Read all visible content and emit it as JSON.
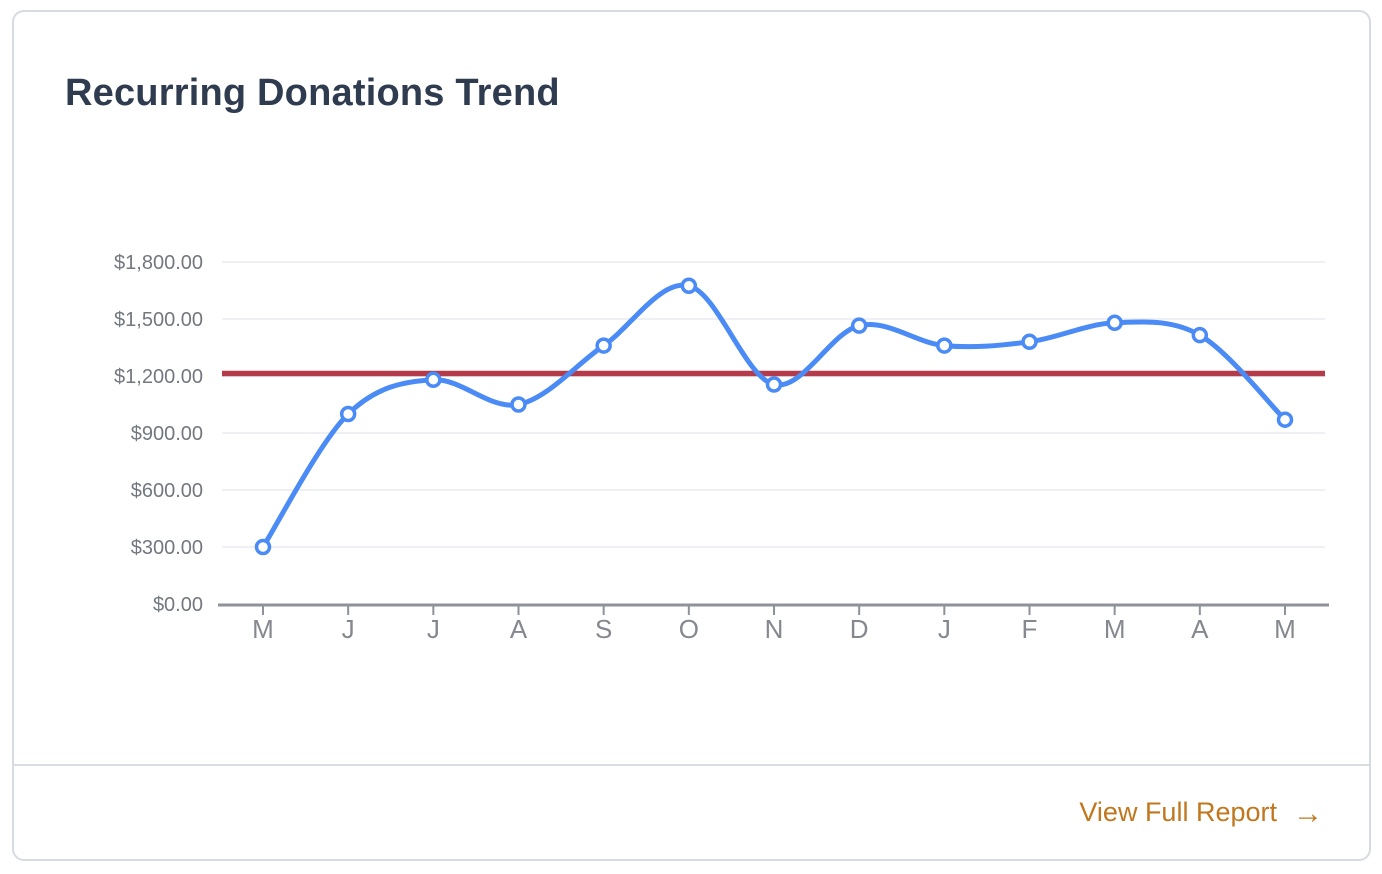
{
  "card": {
    "title": "Recurring Donations Trend",
    "footer": {
      "link_label": "View Full Report",
      "arrow_icon": "→"
    }
  },
  "chart_data": {
    "type": "line",
    "title": "Recurring Donations Trend",
    "categories": [
      "M",
      "J",
      "J",
      "A",
      "S",
      "O",
      "N",
      "D",
      "J",
      "F",
      "M",
      "A",
      "M"
    ],
    "series": [
      {
        "name": "Recurring Donations",
        "values": [
          300,
          1000,
          1180,
          1050,
          1360,
          1675,
          1155,
          1465,
          1360,
          1380,
          1480,
          1415,
          970
        ]
      }
    ],
    "threshold_line": {
      "value": 1213,
      "color": "#b43b4a"
    },
    "ylim": [
      0,
      1800
    ],
    "yticks": [
      0,
      300,
      600,
      900,
      1200,
      1500,
      1800
    ],
    "ytick_labels": [
      "$0.00",
      "$300.00",
      "$600.00",
      "$900.00",
      "$1,200.00",
      "$1,500.00",
      "$1,800.00"
    ],
    "xlabel": "",
    "ylabel": "",
    "grid": true,
    "legend": false,
    "colors": {
      "line": "#4b8bf5",
      "marker_fill": "#ffffff",
      "marker_stroke": "#4b8bf5",
      "gridline": "#e8ebf2",
      "axis": "#8e929b",
      "y_label": "#73777f",
      "x_label": "#85888f"
    }
  }
}
